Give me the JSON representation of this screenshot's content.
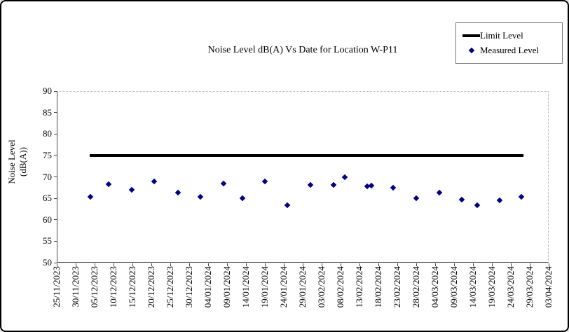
{
  "colors": {
    "background": "#ffffff",
    "border": "#000000",
    "limit_line": "#000000",
    "measured_point": "#000080",
    "axis": "#444444",
    "text": "#000000"
  },
  "chart_data": {
    "type": "scatter",
    "title": "Noise Level dB(A) Vs Date for Location W-P11",
    "ylabel_lines": [
      "Noise Level",
      "(dB(A))"
    ],
    "xlabel": "",
    "ylim": [
      50,
      90
    ],
    "yticks": [
      90,
      85,
      80,
      75,
      70,
      65,
      60,
      55,
      50
    ],
    "grid": false,
    "legend_position": "top-right",
    "legend": [
      {
        "label": "Limit Level",
        "marker": "line",
        "color": "#000000"
      },
      {
        "label": "Measured Level",
        "marker": "diamond",
        "color": "#000080"
      }
    ],
    "x_categories": [
      "25/11/2023",
      "30/11/2023",
      "05/12/2023",
      "10/12/2023",
      "15/12/2023",
      "20/12/2023",
      "25/12/2023",
      "30/12/2023",
      "04/01/2024",
      "09/01/2024",
      "14/01/2024",
      "19/01/2024",
      "24/01/2024",
      "29/01/2024",
      "03/02/2024",
      "08/02/2024",
      "13/02/2024",
      "18/02/2024",
      "23/02/2024",
      "28/02/2024",
      "04/03/2024",
      "09/03/2024",
      "14/03/2024",
      "19/03/2024",
      "24/03/2024",
      "29/03/2024",
      "03/04/2024"
    ],
    "limit_level": {
      "value": 75,
      "x_start_frac": 0.067,
      "x_end_frac": 0.949
    },
    "series": [
      {
        "name": "Measured Level",
        "points": [
          {
            "x_frac": 0.069,
            "date_est": "04/12/2023",
            "value": 65.4
          },
          {
            "x_frac": 0.106,
            "date_est": "09/12/2023",
            "value": 68.3
          },
          {
            "x_frac": 0.152,
            "date_est": "15/12/2023",
            "value": 67.0
          },
          {
            "x_frac": 0.198,
            "date_est": "21/12/2023",
            "value": 68.9
          },
          {
            "x_frac": 0.247,
            "date_est": "27/12/2023",
            "value": 66.3
          },
          {
            "x_frac": 0.292,
            "date_est": "02/01/2024",
            "value": 65.3
          },
          {
            "x_frac": 0.339,
            "date_est": "08/01/2024",
            "value": 68.4
          },
          {
            "x_frac": 0.377,
            "date_est": "13/01/2024",
            "value": 65.1
          },
          {
            "x_frac": 0.423,
            "date_est": "19/01/2024",
            "value": 68.9
          },
          {
            "x_frac": 0.469,
            "date_est": "25/01/2024",
            "value": 63.4
          },
          {
            "x_frac": 0.516,
            "date_est": "31/01/2024",
            "value": 68.1
          },
          {
            "x_frac": 0.562,
            "date_est": "06/02/2024",
            "value": 68.2
          },
          {
            "x_frac": 0.585,
            "date_est": "09/02/2024",
            "value": 69.9
          },
          {
            "x_frac": 0.631,
            "date_est": "15/02/2024",
            "value": 67.8
          },
          {
            "x_frac": 0.639,
            "date_est": "16/02/2024",
            "value": 67.9
          },
          {
            "x_frac": 0.684,
            "date_est": "22/02/2024",
            "value": 67.5
          },
          {
            "x_frac": 0.731,
            "date_est": "28/02/2024",
            "value": 65.0
          },
          {
            "x_frac": 0.778,
            "date_est": "05/03/2024",
            "value": 66.4
          },
          {
            "x_frac": 0.824,
            "date_est": "11/03/2024",
            "value": 64.7
          },
          {
            "x_frac": 0.854,
            "date_est": "15/03/2024",
            "value": 63.4
          },
          {
            "x_frac": 0.9,
            "date_est": "21/03/2024",
            "value": 64.6
          },
          {
            "x_frac": 0.945,
            "date_est": "27/03/2024",
            "value": 65.4
          }
        ]
      }
    ]
  }
}
